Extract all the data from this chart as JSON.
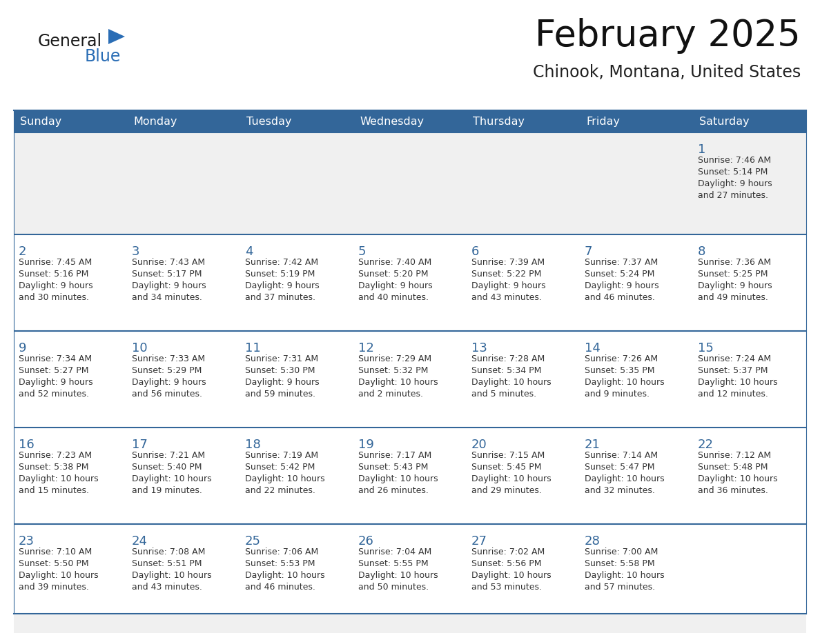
{
  "title": "February 2025",
  "subtitle": "Chinook, Montana, United States",
  "header_bg": "#336699",
  "header_text": "#ffffff",
  "day_names": [
    "Sunday",
    "Monday",
    "Tuesday",
    "Wednesday",
    "Thursday",
    "Friday",
    "Saturday"
  ],
  "cell_bg_gray": "#f0f0f0",
  "cell_bg_white": "#ffffff",
  "border_color": "#336699",
  "text_color": "#333333",
  "day_num_color": "#336699",
  "logo_general_color": "#1a1a1a",
  "logo_blue_color": "#2a6db5",
  "calendar_data": [
    [
      {
        "day": null,
        "sunrise": null,
        "sunset": null,
        "daylight": null
      },
      {
        "day": null,
        "sunrise": null,
        "sunset": null,
        "daylight": null
      },
      {
        "day": null,
        "sunrise": null,
        "sunset": null,
        "daylight": null
      },
      {
        "day": null,
        "sunrise": null,
        "sunset": null,
        "daylight": null
      },
      {
        "day": null,
        "sunrise": null,
        "sunset": null,
        "daylight": null
      },
      {
        "day": null,
        "sunrise": null,
        "sunset": null,
        "daylight": null
      },
      {
        "day": 1,
        "sunrise": "7:46 AM",
        "sunset": "5:14 PM",
        "daylight": "9 hours\nand 27 minutes."
      }
    ],
    [
      {
        "day": 2,
        "sunrise": "7:45 AM",
        "sunset": "5:16 PM",
        "daylight": "9 hours\nand 30 minutes."
      },
      {
        "day": 3,
        "sunrise": "7:43 AM",
        "sunset": "5:17 PM",
        "daylight": "9 hours\nand 34 minutes."
      },
      {
        "day": 4,
        "sunrise": "7:42 AM",
        "sunset": "5:19 PM",
        "daylight": "9 hours\nand 37 minutes."
      },
      {
        "day": 5,
        "sunrise": "7:40 AM",
        "sunset": "5:20 PM",
        "daylight": "9 hours\nand 40 minutes."
      },
      {
        "day": 6,
        "sunrise": "7:39 AM",
        "sunset": "5:22 PM",
        "daylight": "9 hours\nand 43 minutes."
      },
      {
        "day": 7,
        "sunrise": "7:37 AM",
        "sunset": "5:24 PM",
        "daylight": "9 hours\nand 46 minutes."
      },
      {
        "day": 8,
        "sunrise": "7:36 AM",
        "sunset": "5:25 PM",
        "daylight": "9 hours\nand 49 minutes."
      }
    ],
    [
      {
        "day": 9,
        "sunrise": "7:34 AM",
        "sunset": "5:27 PM",
        "daylight": "9 hours\nand 52 minutes."
      },
      {
        "day": 10,
        "sunrise": "7:33 AM",
        "sunset": "5:29 PM",
        "daylight": "9 hours\nand 56 minutes."
      },
      {
        "day": 11,
        "sunrise": "7:31 AM",
        "sunset": "5:30 PM",
        "daylight": "9 hours\nand 59 minutes."
      },
      {
        "day": 12,
        "sunrise": "7:29 AM",
        "sunset": "5:32 PM",
        "daylight": "10 hours\nand 2 minutes."
      },
      {
        "day": 13,
        "sunrise": "7:28 AM",
        "sunset": "5:34 PM",
        "daylight": "10 hours\nand 5 minutes."
      },
      {
        "day": 14,
        "sunrise": "7:26 AM",
        "sunset": "5:35 PM",
        "daylight": "10 hours\nand 9 minutes."
      },
      {
        "day": 15,
        "sunrise": "7:24 AM",
        "sunset": "5:37 PM",
        "daylight": "10 hours\nand 12 minutes."
      }
    ],
    [
      {
        "day": 16,
        "sunrise": "7:23 AM",
        "sunset": "5:38 PM",
        "daylight": "10 hours\nand 15 minutes."
      },
      {
        "day": 17,
        "sunrise": "7:21 AM",
        "sunset": "5:40 PM",
        "daylight": "10 hours\nand 19 minutes."
      },
      {
        "day": 18,
        "sunrise": "7:19 AM",
        "sunset": "5:42 PM",
        "daylight": "10 hours\nand 22 minutes."
      },
      {
        "day": 19,
        "sunrise": "7:17 AM",
        "sunset": "5:43 PM",
        "daylight": "10 hours\nand 26 minutes."
      },
      {
        "day": 20,
        "sunrise": "7:15 AM",
        "sunset": "5:45 PM",
        "daylight": "10 hours\nand 29 minutes."
      },
      {
        "day": 21,
        "sunrise": "7:14 AM",
        "sunset": "5:47 PM",
        "daylight": "10 hours\nand 32 minutes."
      },
      {
        "day": 22,
        "sunrise": "7:12 AM",
        "sunset": "5:48 PM",
        "daylight": "10 hours\nand 36 minutes."
      }
    ],
    [
      {
        "day": 23,
        "sunrise": "7:10 AM",
        "sunset": "5:50 PM",
        "daylight": "10 hours\nand 39 minutes."
      },
      {
        "day": 24,
        "sunrise": "7:08 AM",
        "sunset": "5:51 PM",
        "daylight": "10 hours\nand 43 minutes."
      },
      {
        "day": 25,
        "sunrise": "7:06 AM",
        "sunset": "5:53 PM",
        "daylight": "10 hours\nand 46 minutes."
      },
      {
        "day": 26,
        "sunrise": "7:04 AM",
        "sunset": "5:55 PM",
        "daylight": "10 hours\nand 50 minutes."
      },
      {
        "day": 27,
        "sunrise": "7:02 AM",
        "sunset": "5:56 PM",
        "daylight": "10 hours\nand 53 minutes."
      },
      {
        "day": 28,
        "sunrise": "7:00 AM",
        "sunset": "5:58 PM",
        "daylight": "10 hours\nand 57 minutes."
      },
      {
        "day": null,
        "sunrise": null,
        "sunset": null,
        "daylight": null
      }
    ]
  ]
}
